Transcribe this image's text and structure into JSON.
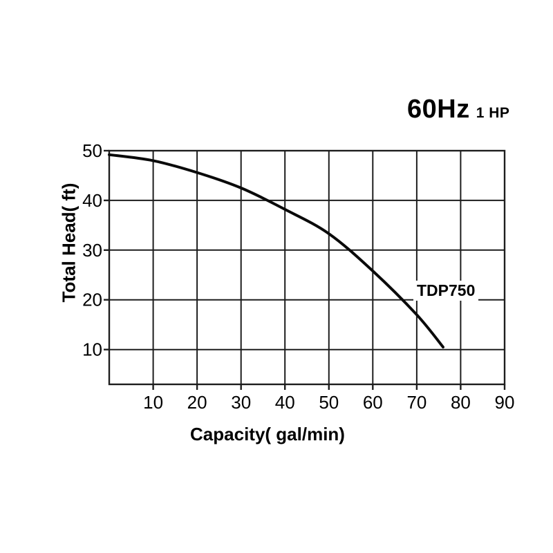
{
  "header": {
    "frequency_label": "60Hz",
    "power_label": "1 HP"
  },
  "chart_data": {
    "type": "line",
    "title": "60Hz 1 HP",
    "xlabel": "Capacity( gal/min)",
    "ylabel": "Total Head( ft)",
    "xlim": [
      0,
      90
    ],
    "ylim": [
      3,
      50
    ],
    "x_ticks": [
      10,
      20,
      30,
      40,
      50,
      60,
      70,
      80,
      90
    ],
    "y_ticks": [
      10,
      20,
      30,
      40,
      50
    ],
    "grid": true,
    "legend_position": "none",
    "series": [
      {
        "name": "TDP750",
        "x": [
          0,
          10,
          20,
          30,
          40,
          50,
          60,
          70,
          76
        ],
        "y": [
          49.2,
          48.0,
          45.6,
          42.5,
          38.2,
          33.3,
          25.8,
          17.0,
          10.5
        ]
      }
    ]
  },
  "colors": {
    "background": "#ffffff",
    "grid": "#1d1d1d",
    "border": "#1d1d1d",
    "curve": "#0a0a0a",
    "text": "#000000"
  }
}
